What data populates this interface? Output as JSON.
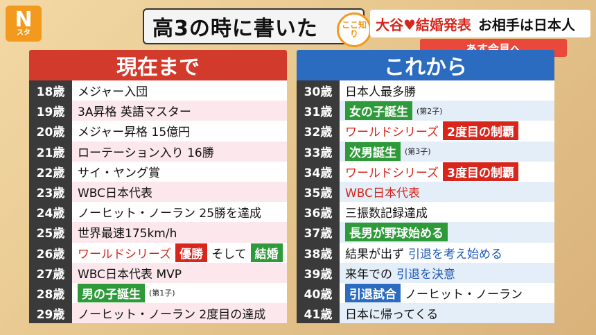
{
  "logo": {
    "mark": "N",
    "sub": "スタ"
  },
  "title": "高3の時に書いた",
  "badge": "ここ知り",
  "ticker": {
    "red": "大谷♥結婚発表",
    "black": "お相手は日本人",
    "sub": "あす会見へ"
  },
  "left": {
    "header": "現在まで",
    "rows": [
      {
        "age": "18歳",
        "text": "メジャー入団"
      },
      {
        "age": "19歳",
        "text": "3A昇格 英語マスター"
      },
      {
        "age": "20歳",
        "text": "メジャー昇格 15億円"
      },
      {
        "age": "21歳",
        "text": "ローテーション入り 16勝"
      },
      {
        "age": "22歳",
        "text": "サイ・ヤング賞"
      },
      {
        "age": "23歳",
        "text": "WBC日本代表"
      },
      {
        "age": "24歳",
        "text": "ノーヒット・ノーラン 25勝を達成"
      },
      {
        "age": "25歳",
        "text": "世界最速175km/h"
      },
      {
        "age": "26歳",
        "text": "ワールドシリーズ",
        "tag1": "優勝",
        "mid": "そして",
        "tag2": "結婚"
      },
      {
        "age": "27歳",
        "text": "WBC日本代表 MVP"
      },
      {
        "age": "28歳",
        "tag": "男の子誕生",
        "note": "(第1子)"
      },
      {
        "age": "29歳",
        "text": "ノーヒット・ノーラン 2度目の達成"
      }
    ]
  },
  "right": {
    "header": "これから",
    "rows": [
      {
        "age": "30歳",
        "text": "日本人最多勝"
      },
      {
        "age": "31歳",
        "tag": "女の子誕生",
        "note": "(第2子)"
      },
      {
        "age": "32歳",
        "text": "ワールドシリーズ",
        "tag": "2度目の制覇"
      },
      {
        "age": "33歳",
        "tag": "次男誕生",
        "note": "(第3子)"
      },
      {
        "age": "34歳",
        "text": "ワールドシリーズ",
        "tag": "3度目の制覇"
      },
      {
        "age": "35歳",
        "text": "WBC日本代表"
      },
      {
        "age": "36歳",
        "text": "三振数記録達成"
      },
      {
        "age": "37歳",
        "tag": "長男が野球始める"
      },
      {
        "age": "38歳",
        "text": "結果が出ず",
        "blue": "引退を考え始める"
      },
      {
        "age": "39歳",
        "text": "来年での",
        "blue": "引退を決意"
      },
      {
        "age": "40歳",
        "tag": "引退試合",
        "text": "ノーヒット・ノーラン"
      },
      {
        "age": "41歳",
        "text": "日本に帰ってくる"
      }
    ]
  }
}
